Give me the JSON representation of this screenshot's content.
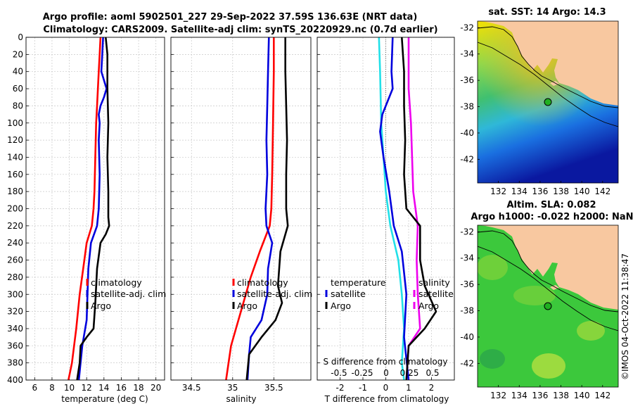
{
  "title": {
    "line1": "Argo profile: aoml 5902501_227 29-Sep-2022 37.59S 136.63E (NRT data)",
    "line2": "Climatology: CARS2009. Satellite-adj clim: synTS_20220929.nc (0.7d earlier)"
  },
  "colors": {
    "climatology": "#ff0000",
    "satellite": "#0000dd",
    "argo": "#000000",
    "t_sat": "#22e0e8",
    "s_diff": "#ee00ee",
    "t_diff_argo": "#0000dd",
    "s_diff_argo": "#ee00ee"
  },
  "depth_axis": {
    "ticks": [
      0,
      20,
      40,
      60,
      80,
      100,
      120,
      140,
      160,
      180,
      200,
      220,
      240,
      260,
      280,
      300,
      320,
      340,
      360,
      380,
      400
    ],
    "lim": [
      0,
      400
    ]
  },
  "chart_data": [
    {
      "id": "temperature",
      "type": "line",
      "xlabel": "temperature (deg C)",
      "ylabel": "",
      "xlim": [
        5,
        21
      ],
      "ylim": [
        400,
        0
      ],
      "xticks": [
        6,
        8,
        10,
        12,
        14,
        16,
        18,
        20
      ],
      "legend": [
        "climatology",
        "satellite-adj. clim",
        "Argo"
      ],
      "legend_position": "lower-center",
      "series": [
        {
          "name": "climatology",
          "color": "#ff0000",
          "points": [
            [
              13.6,
              0
            ],
            [
              13.5,
              20
            ],
            [
              13.4,
              40
            ],
            [
              13.3,
              60
            ],
            [
              13.2,
              80
            ],
            [
              13.1,
              100
            ],
            [
              13.0,
              140
            ],
            [
              12.9,
              180
            ],
            [
              12.8,
              200
            ],
            [
              12.6,
              220
            ],
            [
              12.0,
              240
            ],
            [
              11.6,
              270
            ],
            [
              11.2,
              300
            ],
            [
              10.8,
              340
            ],
            [
              10.3,
              380
            ],
            [
              9.9,
              400
            ]
          ]
        },
        {
          "name": "satellite-adj. clim",
          "color": "#0000dd",
          "points": [
            [
              13.9,
              0
            ],
            [
              13.8,
              20
            ],
            [
              13.7,
              40
            ],
            [
              14.0,
              50
            ],
            [
              14.3,
              60
            ],
            [
              14.0,
              70
            ],
            [
              13.6,
              80
            ],
            [
              13.4,
              90
            ],
            [
              13.5,
              100
            ],
            [
              13.4,
              120
            ],
            [
              13.5,
              160
            ],
            [
              13.4,
              200
            ],
            [
              13.2,
              220
            ],
            [
              12.5,
              240
            ],
            [
              12.2,
              270
            ],
            [
              12.1,
              300
            ],
            [
              12.0,
              330
            ],
            [
              11.5,
              360
            ],
            [
              11.1,
              400
            ]
          ]
        },
        {
          "name": "Argo",
          "color": "#000000",
          "points": [
            [
              14.2,
              0
            ],
            [
              14.4,
              20
            ],
            [
              14.4,
              60
            ],
            [
              14.5,
              100
            ],
            [
              14.4,
              140
            ],
            [
              14.5,
              180
            ],
            [
              14.5,
              210
            ],
            [
              14.6,
              220
            ],
            [
              14.2,
              230
            ],
            [
              13.6,
              240
            ],
            [
              13.2,
              270
            ],
            [
              13.0,
              310
            ],
            [
              12.8,
              340
            ],
            [
              12.0,
              350
            ],
            [
              11.3,
              360
            ],
            [
              11.2,
              380
            ],
            [
              10.9,
              400
            ]
          ]
        }
      ]
    },
    {
      "id": "salinity",
      "type": "line",
      "xlabel": "salinity",
      "ylabel": "",
      "xlim": [
        34.25,
        35.95
      ],
      "ylim": [
        400,
        0
      ],
      "xticks": [
        34.5,
        35,
        35.5
      ],
      "xticklabels": [
        "34.5",
        "35",
        "35.5"
      ],
      "legend": [
        "climatology",
        "satellite-adj. clim",
        "Argo"
      ],
      "legend_position": "lower-center",
      "series": [
        {
          "name": "climatology",
          "color": "#ff0000",
          "points": [
            [
              35.5,
              0
            ],
            [
              35.5,
              40
            ],
            [
              35.49,
              100
            ],
            [
              35.48,
              160
            ],
            [
              35.47,
              200
            ],
            [
              35.45,
              220
            ],
            [
              35.33,
              250
            ],
            [
              35.22,
              280
            ],
            [
              35.1,
              320
            ],
            [
              34.98,
              360
            ],
            [
              34.92,
              400
            ]
          ]
        },
        {
          "name": "satellite-adj. clim",
          "color": "#0000dd",
          "points": [
            [
              35.44,
              0
            ],
            [
              35.43,
              40
            ],
            [
              35.42,
              80
            ],
            [
              35.41,
              120
            ],
            [
              35.42,
              160
            ],
            [
              35.4,
              200
            ],
            [
              35.41,
              220
            ],
            [
              35.48,
              240
            ],
            [
              35.43,
              270
            ],
            [
              35.42,
              300
            ],
            [
              35.35,
              330
            ],
            [
              35.22,
              350
            ],
            [
              35.2,
              370
            ],
            [
              35.18,
              400
            ]
          ]
        },
        {
          "name": "Argo",
          "color": "#000000",
          "points": [
            [
              35.64,
              0
            ],
            [
              35.64,
              40
            ],
            [
              35.65,
              80
            ],
            [
              35.66,
              120
            ],
            [
              35.65,
              160
            ],
            [
              35.65,
              200
            ],
            [
              35.67,
              220
            ],
            [
              35.58,
              250
            ],
            [
              35.55,
              290
            ],
            [
              35.6,
              310
            ],
            [
              35.52,
              330
            ],
            [
              35.35,
              350
            ],
            [
              35.2,
              370
            ],
            [
              35.17,
              400
            ]
          ]
        }
      ]
    },
    {
      "id": "differences",
      "type": "line",
      "xlabel": "T difference from climatology",
      "ylabel": "",
      "xlim": [
        -3,
        3
      ],
      "ylim": [
        400,
        0
      ],
      "xticks": [
        -2,
        -1,
        0,
        1,
        2
      ],
      "top_axis": {
        "label": "S difference from climatology",
        "ticks": [
          "-0.5",
          "-0.25",
          "0",
          "0.25",
          "0.5"
        ]
      },
      "legend_temperature": [
        "temperature",
        "satellite",
        "Argo"
      ],
      "legend_salinity": [
        "salinity",
        "satellite",
        "Argo"
      ],
      "series": [
        {
          "name": "temperature satellite",
          "color": "#22e0e8",
          "points": [
            [
              -0.3,
              0
            ],
            [
              -0.25,
              40
            ],
            [
              -0.2,
              100
            ],
            [
              -0.1,
              140
            ],
            [
              0.0,
              180
            ],
            [
              0.2,
              220
            ],
            [
              0.55,
              260
            ],
            [
              0.7,
              300
            ],
            [
              0.8,
              340
            ],
            [
              0.7,
              380
            ],
            [
              0.8,
              400
            ]
          ]
        },
        {
          "name": "temperature Argo (satellite)",
          "color": "#0000dd",
          "points": [
            [
              0.3,
              0
            ],
            [
              0.25,
              40
            ],
            [
              0.3,
              60
            ],
            [
              -0.15,
              90
            ],
            [
              -0.25,
              110
            ],
            [
              -0.1,
              140
            ],
            [
              0.15,
              180
            ],
            [
              0.35,
              220
            ],
            [
              0.7,
              250
            ],
            [
              0.9,
              300
            ],
            [
              0.8,
              350
            ],
            [
              1.0,
              400
            ]
          ]
        },
        {
          "name": "salinity satellite",
          "color": "#ee00ee",
          "points": [
            [
              1.0,
              0
            ],
            [
              1.0,
              60
            ],
            [
              1.1,
              100
            ],
            [
              1.15,
              140
            ],
            [
              1.2,
              180
            ],
            [
              1.4,
              220
            ],
            [
              1.35,
              260
            ],
            [
              1.4,
              300
            ],
            [
              1.5,
              340
            ],
            [
              1.0,
              360
            ],
            [
              0.9,
              400
            ]
          ]
        },
        {
          "name": "temperature Argo",
          "color": "#000000",
          "points": [
            [
              0.7,
              0
            ],
            [
              0.8,
              40
            ],
            [
              0.8,
              80
            ],
            [
              0.85,
              120
            ],
            [
              0.8,
              160
            ],
            [
              0.9,
              200
            ],
            [
              1.5,
              220
            ],
            [
              1.5,
              260
            ],
            [
              1.7,
              290
            ],
            [
              2.2,
              320
            ],
            [
              1.7,
              340
            ],
            [
              1.0,
              360
            ],
            [
              0.9,
              400
            ]
          ]
        }
      ]
    }
  ],
  "maps": [
    {
      "id": "sst_map",
      "title": "sat. SST: 14 Argo: 14.3",
      "xticks": [
        "132",
        "134",
        "136",
        "138",
        "140",
        "142"
      ],
      "yticks": [
        "-32",
        "-34",
        "-36",
        "-38",
        "-40",
        "-42"
      ],
      "float_position": [
        136.63,
        -37.59
      ],
      "lon_range": [
        130,
        143.5
      ],
      "lat_range": [
        -43.8,
        -31.5
      ]
    },
    {
      "id": "sla_map",
      "title_line1": "Altim. SLA: 0.082",
      "title_line2": "Argo h1000: -0.022 h2000: NaN",
      "xticks": [
        "132",
        "134",
        "136",
        "138",
        "140",
        "142"
      ],
      "yticks": [
        "-32",
        "-34",
        "-36",
        "-38",
        "-40",
        "-42"
      ],
      "float_position": [
        136.63,
        -37.59
      ],
      "lon_range": [
        130,
        143.5
      ],
      "lat_range": [
        -43.8,
        -31.5
      ]
    }
  ],
  "watermark": "©IMOS 04-Oct-2022 11:38:47"
}
